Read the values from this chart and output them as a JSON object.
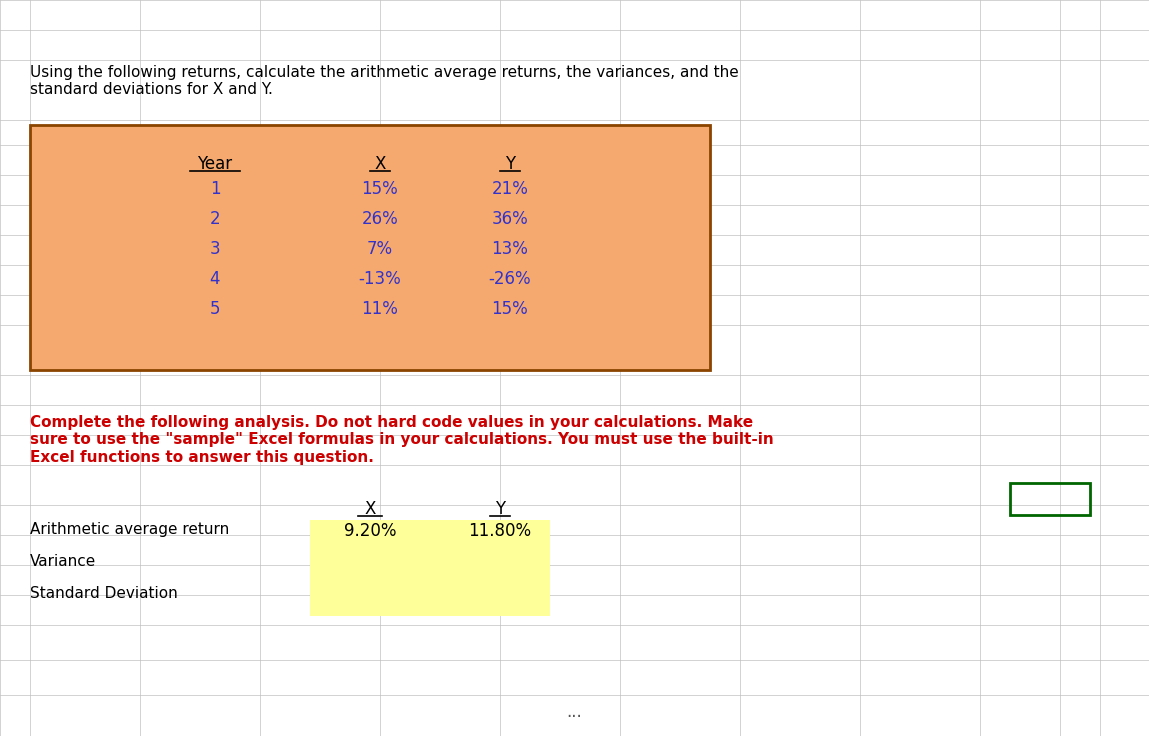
{
  "title_text": "Using the following returns, calculate the arithmetic average returns, the variances, and the\nstandard deviations for X and Y.",
  "orange_box_color": "#F5A96E",
  "orange_box_border": "#8B4500",
  "table1_headers": [
    "Year",
    "X",
    "Y"
  ],
  "table1_years": [
    "1",
    "2",
    "3",
    "4",
    "5"
  ],
  "table1_x": [
    "15%",
    "26%",
    "7%",
    "-13%",
    "11%"
  ],
  "table1_y": [
    "21%",
    "36%",
    "13%",
    "-26%",
    "15%"
  ],
  "table1_data_color": "#3333CC",
  "table1_header_color": "#000000",
  "instruction_text": "Complete the following analysis. Do not hard code values in your calculations. Make\nsure to use the \"sample\" Excel formulas in your calculations. You must use the built-in\nExcel functions to answer this question.",
  "instruction_color": "#CC0000",
  "table2_headers": [
    "X",
    "Y"
  ],
  "table2_row_labels": [
    "Arithmetic average return",
    "Variance",
    "Standard Deviation"
  ],
  "table2_x_values": [
    "9.20%",
    "",
    ""
  ],
  "table2_y_values": [
    "11.80%",
    "",
    ""
  ],
  "yellow_fill": "#FFFF99",
  "green_box_color": "#006600",
  "grid_color": "#C0C0C0",
  "background_color": "#FFFFFF",
  "font_size_title": 11,
  "font_size_table": 12,
  "font_size_instruction": 11
}
